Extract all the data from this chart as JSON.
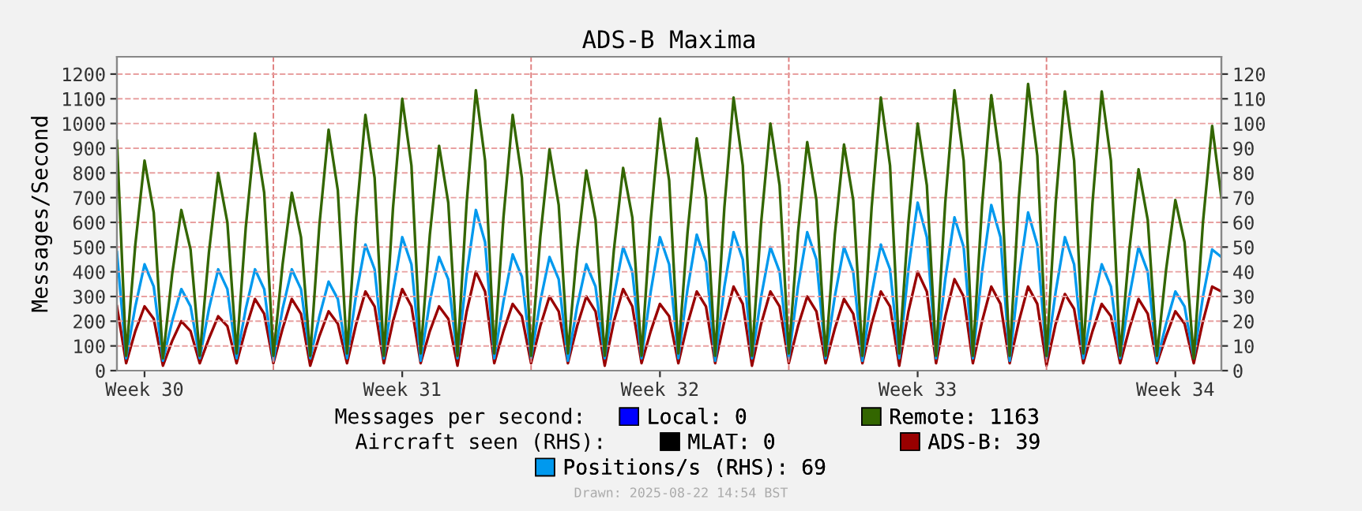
{
  "chart_data": {
    "type": "line",
    "title": "ADS-B Maxima",
    "ylabel": "Messages/Second",
    "categories": [
      null,
      null,
      null,
      "Week 30",
      null,
      null,
      null,
      null,
      null,
      null,
      null,
      null,
      null,
      null,
      null,
      null,
      null,
      null,
      null,
      null,
      null,
      null,
      null,
      null,
      null,
      null,
      null,
      null,
      null,
      null,
      null,
      "Week 31",
      null,
      null,
      null,
      null,
      null,
      null,
      null,
      null,
      null,
      null,
      null,
      null,
      null,
      null,
      null,
      null,
      null,
      null,
      null,
      null,
      null,
      null,
      null,
      null,
      null,
      null,
      null,
      "Week 32",
      null,
      null,
      null,
      null,
      null,
      null,
      null,
      null,
      null,
      null,
      null,
      null,
      null,
      null,
      null,
      null,
      null,
      null,
      null,
      null,
      null,
      null,
      null,
      null,
      null,
      null,
      null,
      "Week 33",
      null,
      null,
      null,
      null,
      null,
      null,
      null,
      null,
      null,
      null,
      null,
      null,
      null,
      null,
      null,
      null,
      null,
      null,
      null,
      null,
      null,
      null,
      null,
      null,
      null,
      null,
      null,
      "Week 34",
      null,
      null,
      null,
      null,
      null
    ],
    "ylim": [
      0,
      1270
    ],
    "yticks": [
      0,
      100,
      200,
      300,
      400,
      500,
      600,
      700,
      800,
      900,
      1000,
      1100,
      1200
    ],
    "y2lim": [
      0,
      127
    ],
    "y2ticks": [
      0,
      10,
      20,
      30,
      40,
      50,
      60,
      70,
      80,
      90,
      100,
      110,
      120
    ],
    "grid": true,
    "legend": "bottom",
    "series": [
      {
        "name": "Local: 0",
        "color": "#0000ff",
        "values": [
          null,
          null,
          null,
          null,
          null,
          null,
          null,
          null,
          null,
          null,
          null,
          null,
          null,
          null,
          null,
          null,
          null,
          null,
          null,
          null,
          null,
          null,
          null,
          null,
          null,
          null,
          null,
          null,
          null,
          null,
          null,
          null,
          null,
          null,
          null,
          null,
          null,
          null,
          null,
          null,
          null,
          null,
          null,
          null,
          null,
          null,
          null,
          null,
          null,
          null,
          null,
          null,
          null,
          null,
          null,
          null,
          null,
          null,
          null,
          null,
          null,
          null,
          null,
          null,
          null,
          null,
          null,
          null,
          null,
          null,
          null,
          null,
          null,
          null,
          null,
          null,
          null,
          null,
          null,
          null,
          null,
          null,
          null,
          null,
          null,
          null,
          null,
          null,
          null,
          null,
          null,
          null,
          null,
          null,
          null,
          null,
          null,
          null,
          null,
          null,
          null,
          null,
          null,
          null,
          null,
          null,
          null,
          null,
          null,
          null,
          null,
          null,
          null,
          null,
          null,
          null,
          null,
          null,
          null,
          null,
          null
        ]
      },
      {
        "name": "Remote: 1163",
        "color": "#336600",
        "values": [
          930,
          60,
          510,
          850,
          640,
          50,
          390,
          650,
          490,
          60,
          480,
          800,
          600,
          70,
          580,
          960,
          720,
          60,
          430,
          720,
          540,
          60,
          590,
          975,
          730,
          70,
          620,
          1035,
          780,
          60,
          660,
          1100,
          830,
          70,
          550,
          910,
          680,
          60,
          680,
          1135,
          850,
          70,
          620,
          1035,
          780,
          60,
          540,
          895,
          670,
          70,
          490,
          810,
          610,
          60,
          490,
          820,
          620,
          60,
          610,
          1020,
          770,
          70,
          560,
          940,
          700,
          60,
          660,
          1105,
          830,
          60,
          600,
          1000,
          750,
          70,
          560,
          925,
          690,
          60,
          550,
          915,
          690,
          60,
          660,
          1105,
          830,
          70,
          600,
          1000,
          750,
          60,
          680,
          1135,
          850,
          60,
          670,
          1115,
          840,
          60,
          700,
          1160,
          870,
          60,
          680,
          1130,
          850,
          70,
          680,
          1130,
          850,
          60,
          490,
          815,
          610,
          60,
          410,
          690,
          520,
          50,
          600,
          990,
          700
        ]
      },
      {
        "name": "MLAT: 0",
        "color": "#000000",
        "axis": "y2",
        "values": [
          null,
          null,
          null,
          null,
          null,
          null,
          null,
          null,
          null,
          null,
          null,
          null,
          null,
          null,
          null,
          null,
          null,
          null,
          null,
          null,
          null,
          null,
          null,
          null,
          null,
          null,
          null,
          null,
          null,
          null,
          null,
          null,
          null,
          null,
          null,
          null,
          null,
          null,
          null,
          null,
          null,
          null,
          null,
          null,
          null,
          null,
          null,
          null,
          null,
          null,
          null,
          null,
          null,
          null,
          null,
          null,
          null,
          null,
          null,
          null,
          null,
          null,
          null,
          null,
          null,
          null,
          null,
          null,
          null,
          null,
          null,
          null,
          null,
          null,
          null,
          null,
          null,
          null,
          null,
          null,
          null,
          null,
          null,
          null,
          null,
          null,
          null,
          null,
          null,
          null,
          null,
          null,
          null,
          null,
          null,
          null,
          null,
          null,
          null,
          null,
          null,
          null,
          null,
          null,
          null,
          null,
          null,
          null,
          null,
          null,
          null,
          null,
          null,
          null,
          null,
          null,
          null,
          null,
          null,
          null,
          null
        ]
      },
      {
        "name": "ADS-B: 39",
        "color": "#990000",
        "axis": "y2",
        "values": [
          26,
          3,
          16,
          26,
          21,
          2,
          12,
          20,
          16,
          3,
          13,
          22,
          18,
          3,
          17,
          29,
          23,
          3,
          17,
          29,
          23,
          2,
          14,
          24,
          19,
          3,
          19,
          32,
          26,
          3,
          20,
          33,
          26,
          3,
          16,
          26,
          21,
          2,
          24,
          40,
          32,
          3,
          16,
          27,
          22,
          3,
          18,
          30,
          24,
          3,
          18,
          30,
          24,
          2,
          20,
          33,
          26,
          3,
          16,
          27,
          22,
          3,
          19,
          32,
          26,
          3,
          20,
          34,
          27,
          2,
          19,
          32,
          26,
          3,
          18,
          30,
          24,
          3,
          17,
          29,
          23,
          3,
          19,
          32,
          26,
          2,
          24,
          40,
          32,
          3,
          22,
          37,
          30,
          3,
          20,
          34,
          27,
          3,
          20,
          34,
          27,
          2,
          19,
          31,
          25,
          3,
          16,
          27,
          22,
          3,
          17,
          29,
          23,
          3,
          14,
          24,
          19,
          3,
          20,
          34,
          32
        ]
      },
      {
        "name": "Positions/s (RHS): 69",
        "color": "#0099ee",
        "axis": "y2",
        "values": [
          48,
          5,
          26,
          43,
          34,
          4,
          20,
          33,
          26,
          5,
          25,
          41,
          33,
          5,
          25,
          41,
          33,
          4,
          25,
          41,
          33,
          5,
          22,
          36,
          29,
          5,
          31,
          51,
          41,
          5,
          32,
          54,
          43,
          4,
          28,
          46,
          37,
          5,
          39,
          65,
          52,
          5,
          28,
          47,
          38,
          5,
          28,
          46,
          37,
          4,
          26,
          43,
          34,
          5,
          30,
          50,
          40,
          5,
          32,
          54,
          43,
          5,
          33,
          55,
          44,
          4,
          34,
          56,
          45,
          5,
          30,
          50,
          40,
          5,
          34,
          56,
          45,
          5,
          30,
          50,
          40,
          4,
          31,
          51,
          41,
          5,
          41,
          68,
          54,
          5,
          37,
          62,
          50,
          5,
          40,
          67,
          54,
          4,
          38,
          64,
          51,
          5,
          32,
          54,
          43,
          5,
          26,
          43,
          34,
          5,
          30,
          50,
          40,
          4,
          19,
          32,
          26,
          5,
          30,
          49,
          46
        ]
      }
    ],
    "annotations": [
      "Messages per second:",
      "Aircraft seen (RHS):",
      "Drawn: 2025-08-22 14:54 BST"
    ]
  }
}
